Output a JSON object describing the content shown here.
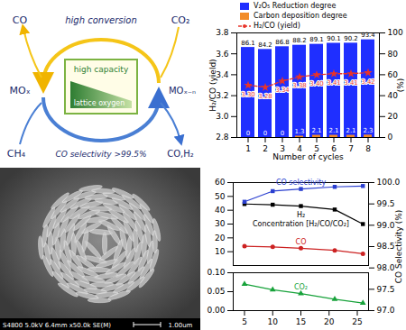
{
  "diagram": {
    "top_left": "CO",
    "top_label": "high conversion",
    "top_right": "CO₂",
    "left": "MOₓ",
    "right": "MOₓ₋ₙ",
    "box_title": "high capacity",
    "box_label": "lattice oxygen",
    "bottom_left": "CH₄",
    "bottom_label": "CO selectivity >99.5%",
    "bottom_right": "CO,H₂"
  },
  "image": {
    "caption": "S4800 5.0kV 6.4mm x50.0k SE(M)",
    "scale_bar": "1.00um"
  },
  "chart_data": [
    {
      "type": "bar",
      "xlabel": "Number of cycles",
      "ylabel": "H₂/CO (yield)",
      "y2label": "(%)",
      "categories": [
        "1",
        "2",
        "3",
        "4",
        "5",
        "6",
        "7",
        "8"
      ],
      "ylim": [
        2.8,
        3.8
      ],
      "yticks": [
        2.8,
        {
          "value": 3,
          "label": "3.0"
        },
        3.2,
        3.4,
        3.6,
        3.8
      ],
      "y2lim": [
        0,
        100
      ],
      "y2ticks": [
        0,
        20,
        40,
        60,
        80,
        100
      ],
      "legend": "top",
      "data_labels": true,
      "series": [
        {
          "name": "V₂O₅ Reduction degree",
          "type": "bar",
          "axis": "y2",
          "color": "#1f2fff",
          "values": [
            86.1,
            84.2,
            86.8,
            88.2,
            89.1,
            90.1,
            90.2,
            93.4
          ]
        },
        {
          "name": "Carbon deposition degree",
          "type": "bar",
          "axis": "y2",
          "color": "#f28c28",
          "values": [
            0,
            0,
            0,
            1.3,
            2.1,
            2.1,
            2.1,
            2.3
          ]
        },
        {
          "name": "H₂/CO (yield)",
          "type": "line",
          "color": "#e8332a",
          "marker": "star",
          "line_style": "dashed",
          "values": [
            3.3,
            3.28,
            3.34,
            3.38,
            3.4,
            3.41,
            3.41,
            3.42
          ],
          "value_labels": [
            "3.30",
            "3.28",
            "3.34",
            "3.38",
            "3.40",
            "3.41",
            "3.41",
            "3.42"
          ]
        }
      ]
    },
    {
      "type": "line",
      "x": [
        5,
        10,
        15,
        21,
        26
      ],
      "xlim": [
        3,
        27
      ],
      "ylim": [
        0,
        60
      ],
      "yticks": [
        10,
        20,
        30,
        40,
        50,
        60
      ],
      "y2lim": [
        97,
        100
      ],
      "y2ticks": [
        {
          "value": 97,
          "label": "97.0"
        },
        97.5,
        {
          "value": 98,
          "label": "98.0"
        },
        98.5,
        {
          "value": 99,
          "label": "99.0"
        },
        99.5,
        {
          "value": 100,
          "label": "100.0"
        }
      ],
      "y2label": "CO Selectivity (%)",
      "annotations": [
        "Concentration [H₂/CO/CO₂]"
      ],
      "series": [
        {
          "name": "H₂",
          "color": "#000000",
          "marker": "square",
          "values": [
            44.5,
            44,
            43,
            40.5,
            30
          ]
        },
        {
          "name": "CO",
          "color": "#cc2222",
          "marker": "circle",
          "values": [
            14,
            13.5,
            12.5,
            11,
            8.5
          ]
        },
        {
          "name": "CO selectivity",
          "axis": "y2",
          "color": "#2a3fd0",
          "marker": "square",
          "values": [
            99.55,
            99.8,
            99.85,
            99.9,
            99.92
          ]
        }
      ]
    },
    {
      "type": "line",
      "x": [
        5,
        10,
        15,
        21,
        26
      ],
      "xlim": [
        3,
        27
      ],
      "xticks": [
        5,
        10,
        15,
        20,
        25
      ],
      "ylim": [
        0,
        0.1
      ],
      "yticks": [
        {
          "value": 0,
          "label": "0.00"
        },
        0.05,
        {
          "value": 0.1,
          "label": "0.10"
        }
      ],
      "series": [
        {
          "name": "CO₂",
          "color": "#17a23a",
          "marker": "triangle",
          "values": [
            0.07,
            0.055,
            0.045,
            0.03,
            0.02
          ]
        }
      ]
    }
  ]
}
